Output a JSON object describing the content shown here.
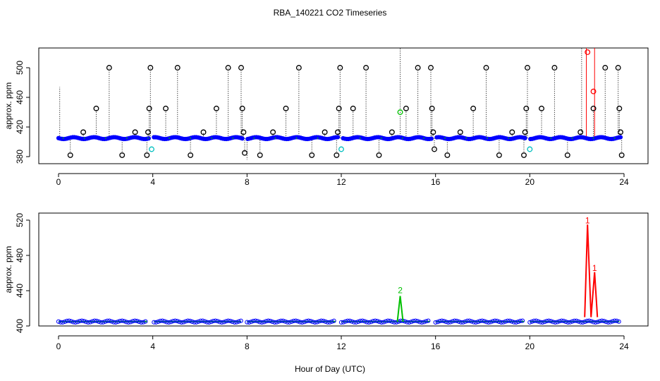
{
  "title": "RBA_140221  CO2 Timeseries",
  "xlabel": "Hour of Day (UTC)",
  "colors": {
    "blue": "#0000ff",
    "black": "#000000",
    "cyan": "#00bfbf",
    "green": "#00c000",
    "red": "#ff0000",
    "orange": "#ff8c00"
  },
  "chart_data": [
    {
      "type": "scatter",
      "ylabel": "approx. ppm",
      "xlim": [
        0,
        24
      ],
      "ylim": [
        376,
        526
      ],
      "x_ticks": [
        "0",
        "4",
        "8",
        "12",
        "16",
        "20",
        "24"
      ],
      "y_ticks": [
        "380",
        "420",
        "460",
        "500"
      ],
      "baseline": 405,
      "gaps": [
        [
          3.85,
          4.05
        ],
        [
          7.85,
          8.0
        ],
        [
          11.85,
          12.0
        ],
        [
          15.85,
          16.0
        ],
        [
          19.85,
          20.0
        ]
      ],
      "spikes": [
        {
          "x": 0.05,
          "y": 474,
          "marker": false
        },
        {
          "x": 0.5,
          "y": 382,
          "marker": true
        },
        {
          "x": 1.05,
          "y": 413,
          "marker": true
        },
        {
          "x": 1.6,
          "y": 445,
          "marker": true
        },
        {
          "x": 2.15,
          "y": 500,
          "marker": true
        },
        {
          "x": 2.7,
          "y": 382,
          "marker": true
        },
        {
          "x": 3.25,
          "y": 413,
          "marker": true
        },
        {
          "x": 3.75,
          "y": 382,
          "marker": true
        },
        {
          "x": 3.8,
          "y": 413,
          "marker": true
        },
        {
          "x": 3.85,
          "y": 445,
          "marker": true
        },
        {
          "x": 3.9,
          "y": 500,
          "marker": true
        },
        {
          "x": 4.55,
          "y": 445,
          "marker": true
        },
        {
          "x": 5.05,
          "y": 500,
          "marker": true
        },
        {
          "x": 5.6,
          "y": 382,
          "marker": true
        },
        {
          "x": 6.15,
          "y": 413,
          "marker": true
        },
        {
          "x": 6.7,
          "y": 445,
          "marker": true
        },
        {
          "x": 7.2,
          "y": 500,
          "marker": true
        },
        {
          "x": 7.75,
          "y": 500,
          "marker": true
        },
        {
          "x": 7.8,
          "y": 445,
          "marker": true
        },
        {
          "x": 7.85,
          "y": 413,
          "marker": true
        },
        {
          "x": 7.9,
          "y": 385,
          "marker": true
        },
        {
          "x": 8.0,
          "y": 376,
          "marker": false
        },
        {
          "x": 8.55,
          "y": 382,
          "marker": true
        },
        {
          "x": 9.1,
          "y": 413,
          "marker": true
        },
        {
          "x": 9.65,
          "y": 445,
          "marker": true
        },
        {
          "x": 10.2,
          "y": 500,
          "marker": true
        },
        {
          "x": 10.75,
          "y": 382,
          "marker": true
        },
        {
          "x": 11.3,
          "y": 413,
          "marker": true
        },
        {
          "x": 11.8,
          "y": 382,
          "marker": true
        },
        {
          "x": 11.85,
          "y": 413,
          "marker": true
        },
        {
          "x": 11.9,
          "y": 445,
          "marker": true
        },
        {
          "x": 11.95,
          "y": 500,
          "marker": true
        },
        {
          "x": 12.5,
          "y": 445,
          "marker": true
        },
        {
          "x": 13.05,
          "y": 500,
          "marker": true
        },
        {
          "x": 13.6,
          "y": 382,
          "marker": true
        },
        {
          "x": 14.15,
          "y": 413,
          "marker": true
        },
        {
          "x": 14.5,
          "y": 526,
          "marker": false
        },
        {
          "x": 14.75,
          "y": 445,
          "marker": true
        },
        {
          "x": 15.25,
          "y": 500,
          "marker": true
        },
        {
          "x": 15.8,
          "y": 500,
          "marker": true
        },
        {
          "x": 15.85,
          "y": 445,
          "marker": true
        },
        {
          "x": 15.9,
          "y": 413,
          "marker": true
        },
        {
          "x": 15.95,
          "y": 390,
          "marker": true
        },
        {
          "x": 16.5,
          "y": 382,
          "marker": true
        },
        {
          "x": 17.05,
          "y": 413,
          "marker": true
        },
        {
          "x": 17.6,
          "y": 445,
          "marker": true
        },
        {
          "x": 18.15,
          "y": 500,
          "marker": true
        },
        {
          "x": 18.7,
          "y": 382,
          "marker": true
        },
        {
          "x": 19.25,
          "y": 413,
          "marker": true
        },
        {
          "x": 19.75,
          "y": 382,
          "marker": true
        },
        {
          "x": 19.8,
          "y": 413,
          "marker": true
        },
        {
          "x": 19.85,
          "y": 445,
          "marker": true
        },
        {
          "x": 19.9,
          "y": 500,
          "marker": true
        },
        {
          "x": 20.5,
          "y": 445,
          "marker": true
        },
        {
          "x": 21.05,
          "y": 500,
          "marker": true
        },
        {
          "x": 21.6,
          "y": 382,
          "marker": true
        },
        {
          "x": 22.15,
          "y": 413,
          "marker": true
        },
        {
          "x": 22.2,
          "y": 526,
          "marker": false
        },
        {
          "x": 22.7,
          "y": 445,
          "marker": true
        },
        {
          "x": 23.2,
          "y": 500,
          "marker": true
        },
        {
          "x": 23.75,
          "y": 500,
          "marker": true
        },
        {
          "x": 23.8,
          "y": 445,
          "marker": true
        },
        {
          "x": 23.85,
          "y": 413,
          "marker": true
        },
        {
          "x": 23.9,
          "y": 382,
          "marker": true
        }
      ],
      "cyan_points": [
        {
          "x": 3.95,
          "y": 390
        },
        {
          "x": 12.0,
          "y": 390
        },
        {
          "x": 20.0,
          "y": 390
        }
      ],
      "green_points": [
        {
          "x": 14.5,
          "y": 440
        }
      ],
      "red_points": [
        {
          "x": 22.45,
          "y": 521
        },
        {
          "x": 22.7,
          "y": 468
        }
      ],
      "red_lines": [
        {
          "x": 22.4,
          "y": 526
        },
        {
          "x": 22.75,
          "y": 526
        }
      ]
    },
    {
      "type": "line",
      "ylabel": "approx. ppm",
      "xlim": [
        0,
        24
      ],
      "ylim": [
        400,
        530
      ],
      "x_ticks": [
        "0",
        "4",
        "8",
        "12",
        "16",
        "20",
        "24"
      ],
      "y_ticks": [
        "400",
        "440",
        "480",
        "520"
      ],
      "baseline": 405,
      "segments": [
        [
          0,
          3.75
        ],
        [
          4.05,
          7.75
        ],
        [
          8.0,
          11.75
        ],
        [
          12.0,
          15.75
        ],
        [
          16.0,
          19.75
        ],
        [
          20.0,
          23.8
        ]
      ],
      "green_peak": {
        "x": 14.5,
        "y": 434,
        "label": "2"
      },
      "red_peaks": [
        {
          "x": 22.45,
          "y": 515,
          "label": "1"
        },
        {
          "x": 22.75,
          "y": 461,
          "label": "1"
        }
      ]
    }
  ]
}
